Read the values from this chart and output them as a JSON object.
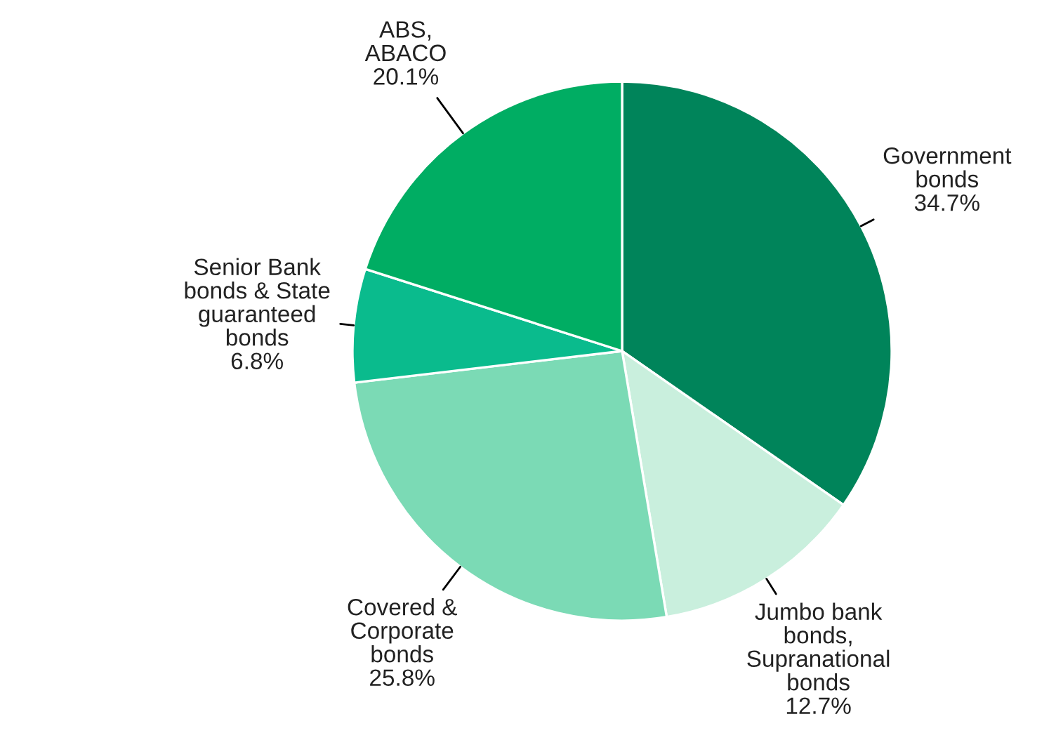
{
  "chart_data": {
    "type": "pie",
    "categories": [
      "Government\nbonds",
      "Jumbo bank\nbonds,\nSupranational\nbonds",
      "Covered &\nCorporate\nbonds",
      "Senior Bank\nbonds & State\nguaranteed\nbonds",
      "ABS,\nABACO"
    ],
    "values": [
      34.7,
      12.7,
      25.8,
      6.8,
      20.1
    ],
    "colors": [
      "#00845a",
      "#c9efdd",
      "#7bdab5",
      "#0abb8d",
      "#00ad63"
    ],
    "value_labels": [
      "34.7%",
      "12.7%",
      "25.8%",
      "6.8%",
      "20.1%"
    ]
  }
}
